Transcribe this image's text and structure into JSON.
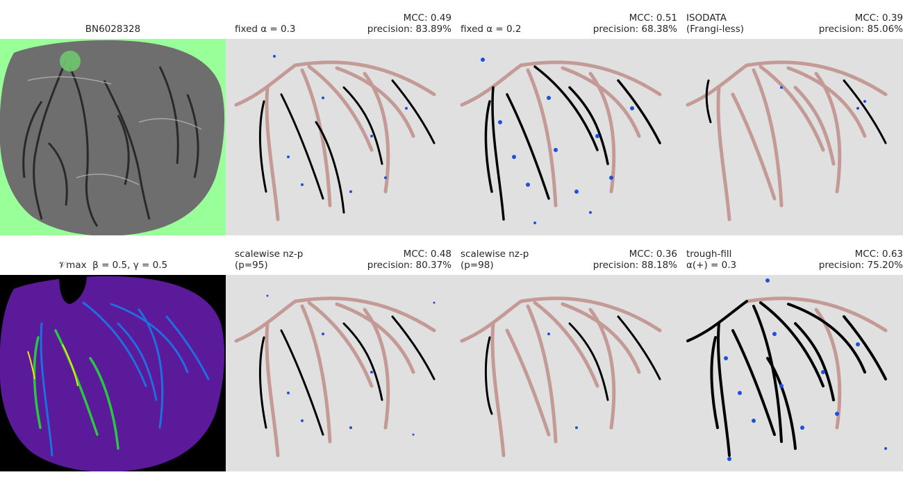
{
  "figure": {
    "panels": [
      {
        "id": "raw",
        "title_center": "BN6028328",
        "kind": "raw-image",
        "colors": {
          "background": "#99ff99",
          "tissue": "#6e6e6e",
          "vessel": "#1e1e1e",
          "highlight": "#6fc76f"
        }
      },
      {
        "id": "fixed03",
        "title_left": "fixed α = 0.3",
        "mcc": "MCC: 0.49",
        "precision": "precision: 83.89%",
        "kind": "segmentation"
      },
      {
        "id": "fixed02",
        "title_left": "fixed α = 0.2",
        "mcc": "MCC: 0.51",
        "precision": "precision: 68.38%",
        "kind": "segmentation"
      },
      {
        "id": "isodata",
        "title_left_line1": "ISODATA",
        "title_left_line2": "(Frangi-less)",
        "mcc": "MCC: 0.39",
        "precision": "precision: 85.06%",
        "kind": "segmentation"
      },
      {
        "id": "vmax",
        "title_center": "𝒱max  β = 0.5, γ = 0.5",
        "kind": "heatmap",
        "colors": {
          "background": "#000000",
          "low": "#5a1a9a",
          "mid": "#1f6fe0",
          "high": "#27c940",
          "peak": "#f0e010"
        }
      },
      {
        "id": "nzp95",
        "title_left_line1": "scalewise nz-p",
        "title_left_line2": "(p=95)",
        "mcc": "MCC: 0.48",
        "precision": "precision: 80.37%",
        "kind": "segmentation"
      },
      {
        "id": "nzp98",
        "title_left_line1": "scalewise nz-p",
        "title_left_line2": "(p=98)",
        "mcc": "MCC: 0.36",
        "precision": "precision: 88.18%",
        "kind": "segmentation"
      },
      {
        "id": "troughfill",
        "title_left_line1": "trough-fill",
        "title_left_line2": "α(+) = 0.3",
        "mcc": "MCC: 0.63",
        "precision": "precision: 75.20%",
        "kind": "segmentation"
      }
    ],
    "segmentation_colors": {
      "background": "#e0e0e0",
      "true_positive": "#000000",
      "false_negative": "#c49a96",
      "false_positive": "#1e50e0"
    }
  }
}
